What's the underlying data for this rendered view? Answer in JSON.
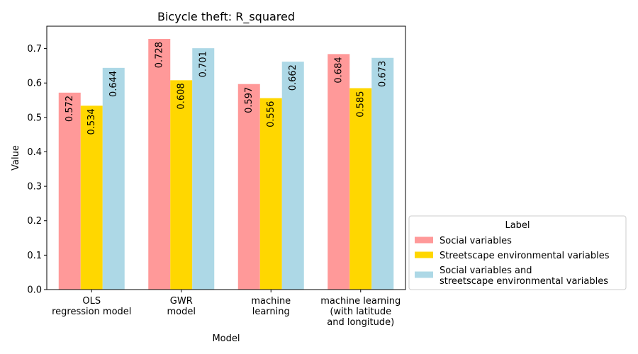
{
  "chart_data": {
    "type": "bar",
    "title": "Bicycle theft: R_squared",
    "xlabel": "Model",
    "ylabel": "Value",
    "ylim": [
      0,
      0.765
    ],
    "yticks": [
      "0.0",
      "0.1",
      "0.2",
      "0.3",
      "0.4",
      "0.5",
      "0.6",
      "0.7"
    ],
    "categories": [
      [
        "OLS",
        "regression model"
      ],
      [
        "GWR",
        "model"
      ],
      [
        "machine",
        "learning"
      ],
      [
        "machine learning",
        "(with latitude",
        "and longitude)"
      ]
    ],
    "series": [
      {
        "name": "Social variables",
        "legend_lines": [
          "Social variables"
        ],
        "color": "#ff9999",
        "values": [
          0.572,
          0.728,
          0.597,
          0.684
        ],
        "labels": [
          "0.572",
          "0.728",
          "0.597",
          "0.684"
        ]
      },
      {
        "name": "Streetscape environmental variables",
        "legend_lines": [
          "Streetscape environmental variables"
        ],
        "color": "#ffd700",
        "values": [
          0.534,
          0.608,
          0.556,
          0.585
        ],
        "labels": [
          "0.534",
          "0.608",
          "0.556",
          "0.585"
        ]
      },
      {
        "name": "Social variables and streetscape environmental variables",
        "legend_lines": [
          "Social variables and",
          "streetscape environmental variables"
        ],
        "color": "#add8e6",
        "values": [
          0.644,
          0.701,
          0.662,
          0.673
        ],
        "labels": [
          "0.644",
          "0.701",
          "0.662",
          "0.673"
        ]
      }
    ],
    "legend": {
      "title": "Label",
      "placement": "outside-right-bottom"
    }
  }
}
